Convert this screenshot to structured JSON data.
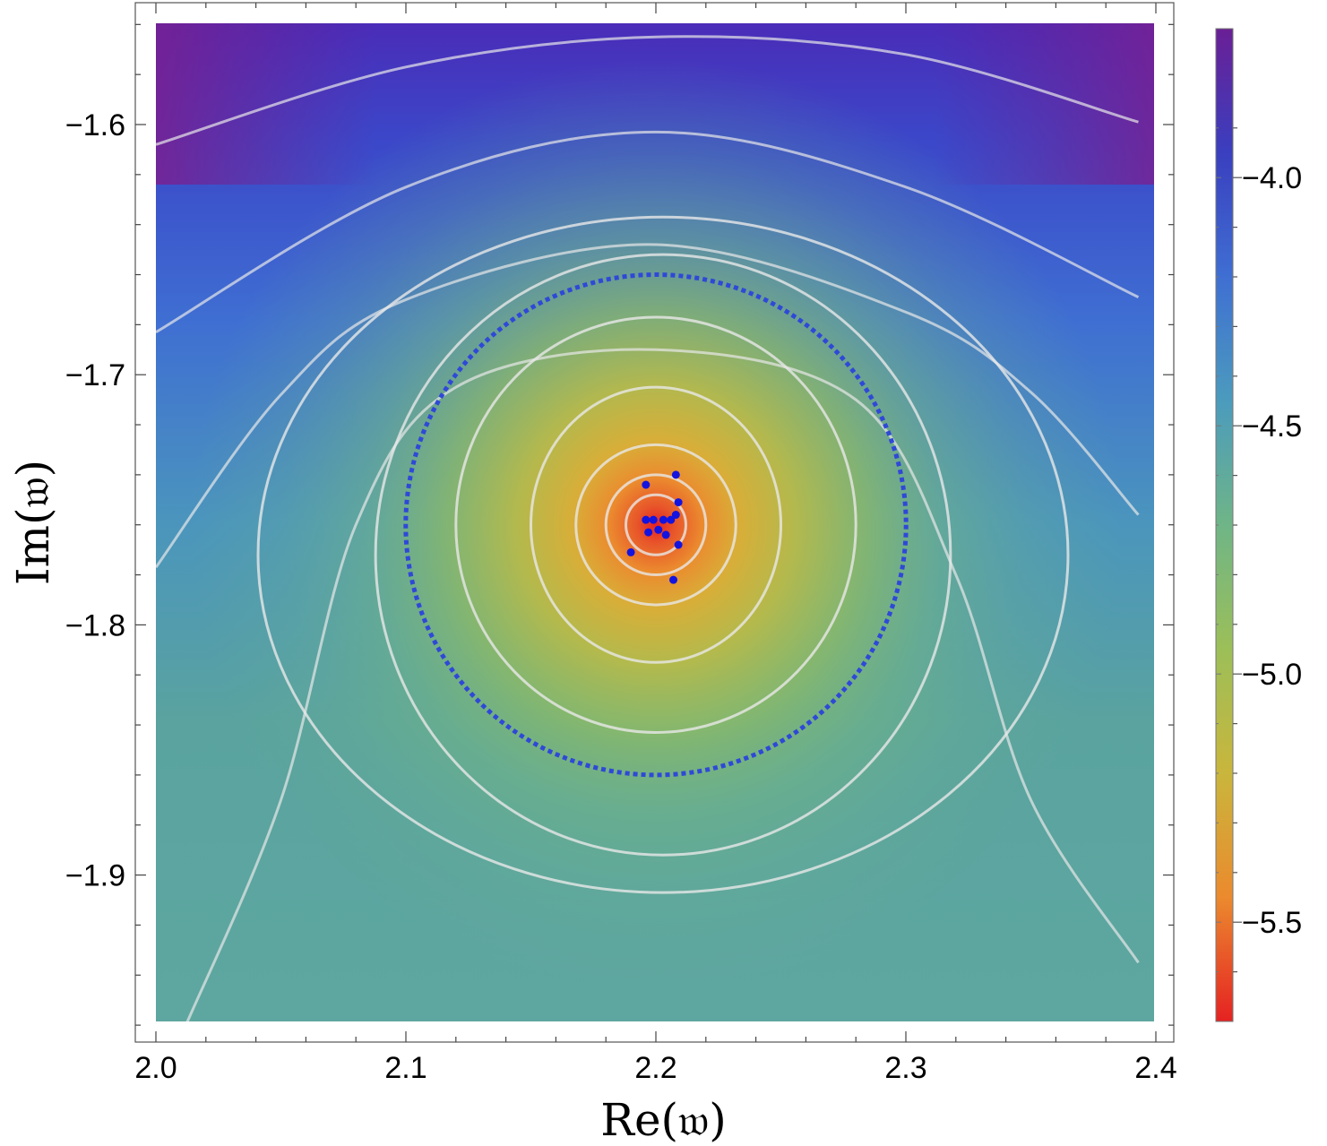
{
  "chart_data": {
    "type": "heatmap",
    "xlabel": "Re(𝔴)",
    "ylabel": "Im(𝔴)",
    "xlim": [
      2.0,
      2.4
    ],
    "ylim": [
      -1.96,
      -1.56
    ],
    "x_ticks": [
      {
        "value": 2.0,
        "label": "2.0"
      },
      {
        "value": 2.1,
        "label": "2.1"
      },
      {
        "value": 2.2,
        "label": "2.2"
      },
      {
        "value": 2.3,
        "label": "2.3"
      },
      {
        "value": 2.4,
        "label": "2.4"
      }
    ],
    "y_ticks": [
      {
        "value": -1.6,
        "label": "−1.6"
      },
      {
        "value": -1.7,
        "label": "−1.7"
      },
      {
        "value": -1.8,
        "label": "−1.8"
      },
      {
        "value": -1.9,
        "label": "−1.9"
      }
    ],
    "colorbar": {
      "range": [
        -5.7,
        -3.7
      ],
      "ticks": [
        {
          "value": -4.0,
          "label": "−4.0"
        },
        {
          "value": -4.5,
          "label": "−4.5"
        },
        {
          "value": -5.0,
          "label": "−5.0"
        },
        {
          "value": -5.5,
          "label": "−5.5"
        }
      ],
      "colors": [
        "#e52222",
        "#eb8a2e",
        "#c9b63c",
        "#9cbf58",
        "#6fb587",
        "#4b9bbd",
        "#3f6fd2",
        "#3a3fbf",
        "#6a1f95"
      ]
    },
    "contour_color": "#e8e8e8",
    "contour_levels": [
      {
        "rx": 0.012,
        "ry": 0.012
      },
      {
        "rx": 0.02,
        "ry": 0.02
      },
      {
        "rx": 0.032,
        "ry": 0.032
      },
      {
        "rx": 0.05,
        "ry": 0.055
      },
      {
        "rx": 0.08,
        "ry": 0.083
      },
      {
        "rx": 0.115,
        "ry": 0.12
      },
      {
        "rx": 0.162,
        "ry": 0.135
      }
    ],
    "dotted_circle": {
      "center": [
        2.2,
        -1.76
      ],
      "radius": 0.1,
      "color": "#2f48d8"
    },
    "outer_contours": [
      [
        [
          2.0,
          -1.608
        ],
        [
          2.1,
          -1.577
        ],
        [
          2.2,
          -1.565
        ],
        [
          2.3,
          -1.572
        ],
        [
          2.393,
          -1.599
        ]
      ],
      [
        [
          2.0,
          -1.683
        ],
        [
          2.1,
          -1.625
        ],
        [
          2.2,
          -1.603
        ],
        [
          2.3,
          -1.625
        ],
        [
          2.393,
          -1.669
        ]
      ],
      [
        [
          2.0,
          -1.777
        ],
        [
          2.05,
          -1.708
        ],
        [
          2.1,
          -1.67
        ],
        [
          2.2,
          -1.648
        ],
        [
          2.3,
          -1.675
        ],
        [
          2.35,
          -1.707
        ],
        [
          2.393,
          -1.756
        ]
      ],
      [
        [
          2.012,
          -1.96
        ],
        [
          2.05,
          -1.87
        ],
        [
          2.08,
          -1.76
        ],
        [
          2.12,
          -1.705
        ],
        [
          2.2,
          -1.69
        ],
        [
          2.28,
          -1.71
        ],
        [
          2.32,
          -1.78
        ],
        [
          2.35,
          -1.87
        ],
        [
          2.393,
          -1.935
        ]
      ]
    ],
    "center_point": [
      2.2,
      -1.76
    ],
    "scatter_points": [
      [
        2.196,
        -1.744
      ],
      [
        2.208,
        -1.74
      ],
      [
        2.209,
        -1.751
      ],
      [
        2.208,
        -1.756
      ],
      [
        2.196,
        -1.758
      ],
      [
        2.199,
        -1.758
      ],
      [
        2.203,
        -1.758
      ],
      [
        2.206,
        -1.758
      ],
      [
        2.197,
        -1.763
      ],
      [
        2.201,
        -1.762
      ],
      [
        2.204,
        -1.764
      ],
      [
        2.209,
        -1.768
      ],
      [
        2.19,
        -1.771
      ],
      [
        2.207,
        -1.782
      ]
    ],
    "point_color": "#1414e0"
  }
}
